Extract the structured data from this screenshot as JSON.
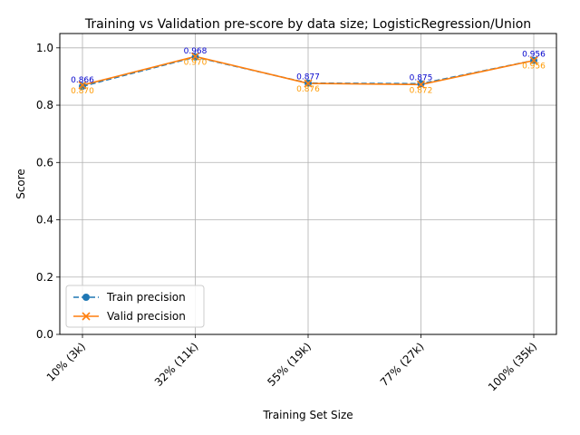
{
  "chart_data": {
    "type": "line",
    "title": "Training vs Validation pre-score by data size; LogisticRegression/Union",
    "xlabel": "Training Set Size",
    "ylabel": "Score",
    "categories": [
      "10% (3k)",
      "32% (11k)",
      "55% (19k)",
      "77% (27k)",
      "100% (35k)"
    ],
    "ylim": [
      0,
      1.05
    ],
    "yticks": [
      "0.0",
      "0.2",
      "0.4",
      "0.6",
      "0.8",
      "1.0"
    ],
    "grid": true,
    "legend_position": "lower-left",
    "series": [
      {
        "name": "Train precision",
        "values": [
          0.866,
          0.968,
          0.877,
          0.875,
          0.956
        ],
        "labels": [
          "0.866",
          "0.968",
          "0.877",
          "0.875",
          "0.956"
        ],
        "color": "#1f77b4",
        "label_color": "#0000cc",
        "line_style": "dashed",
        "marker": "circle"
      },
      {
        "name": "Valid precision",
        "values": [
          0.87,
          0.97,
          0.876,
          0.872,
          0.956
        ],
        "labels": [
          "0.870",
          "0.970",
          "0.876",
          "0.872",
          "0.956"
        ],
        "color": "#ff7f0e",
        "label_color": "#ff9900",
        "line_style": "solid",
        "marker": "x"
      }
    ]
  }
}
